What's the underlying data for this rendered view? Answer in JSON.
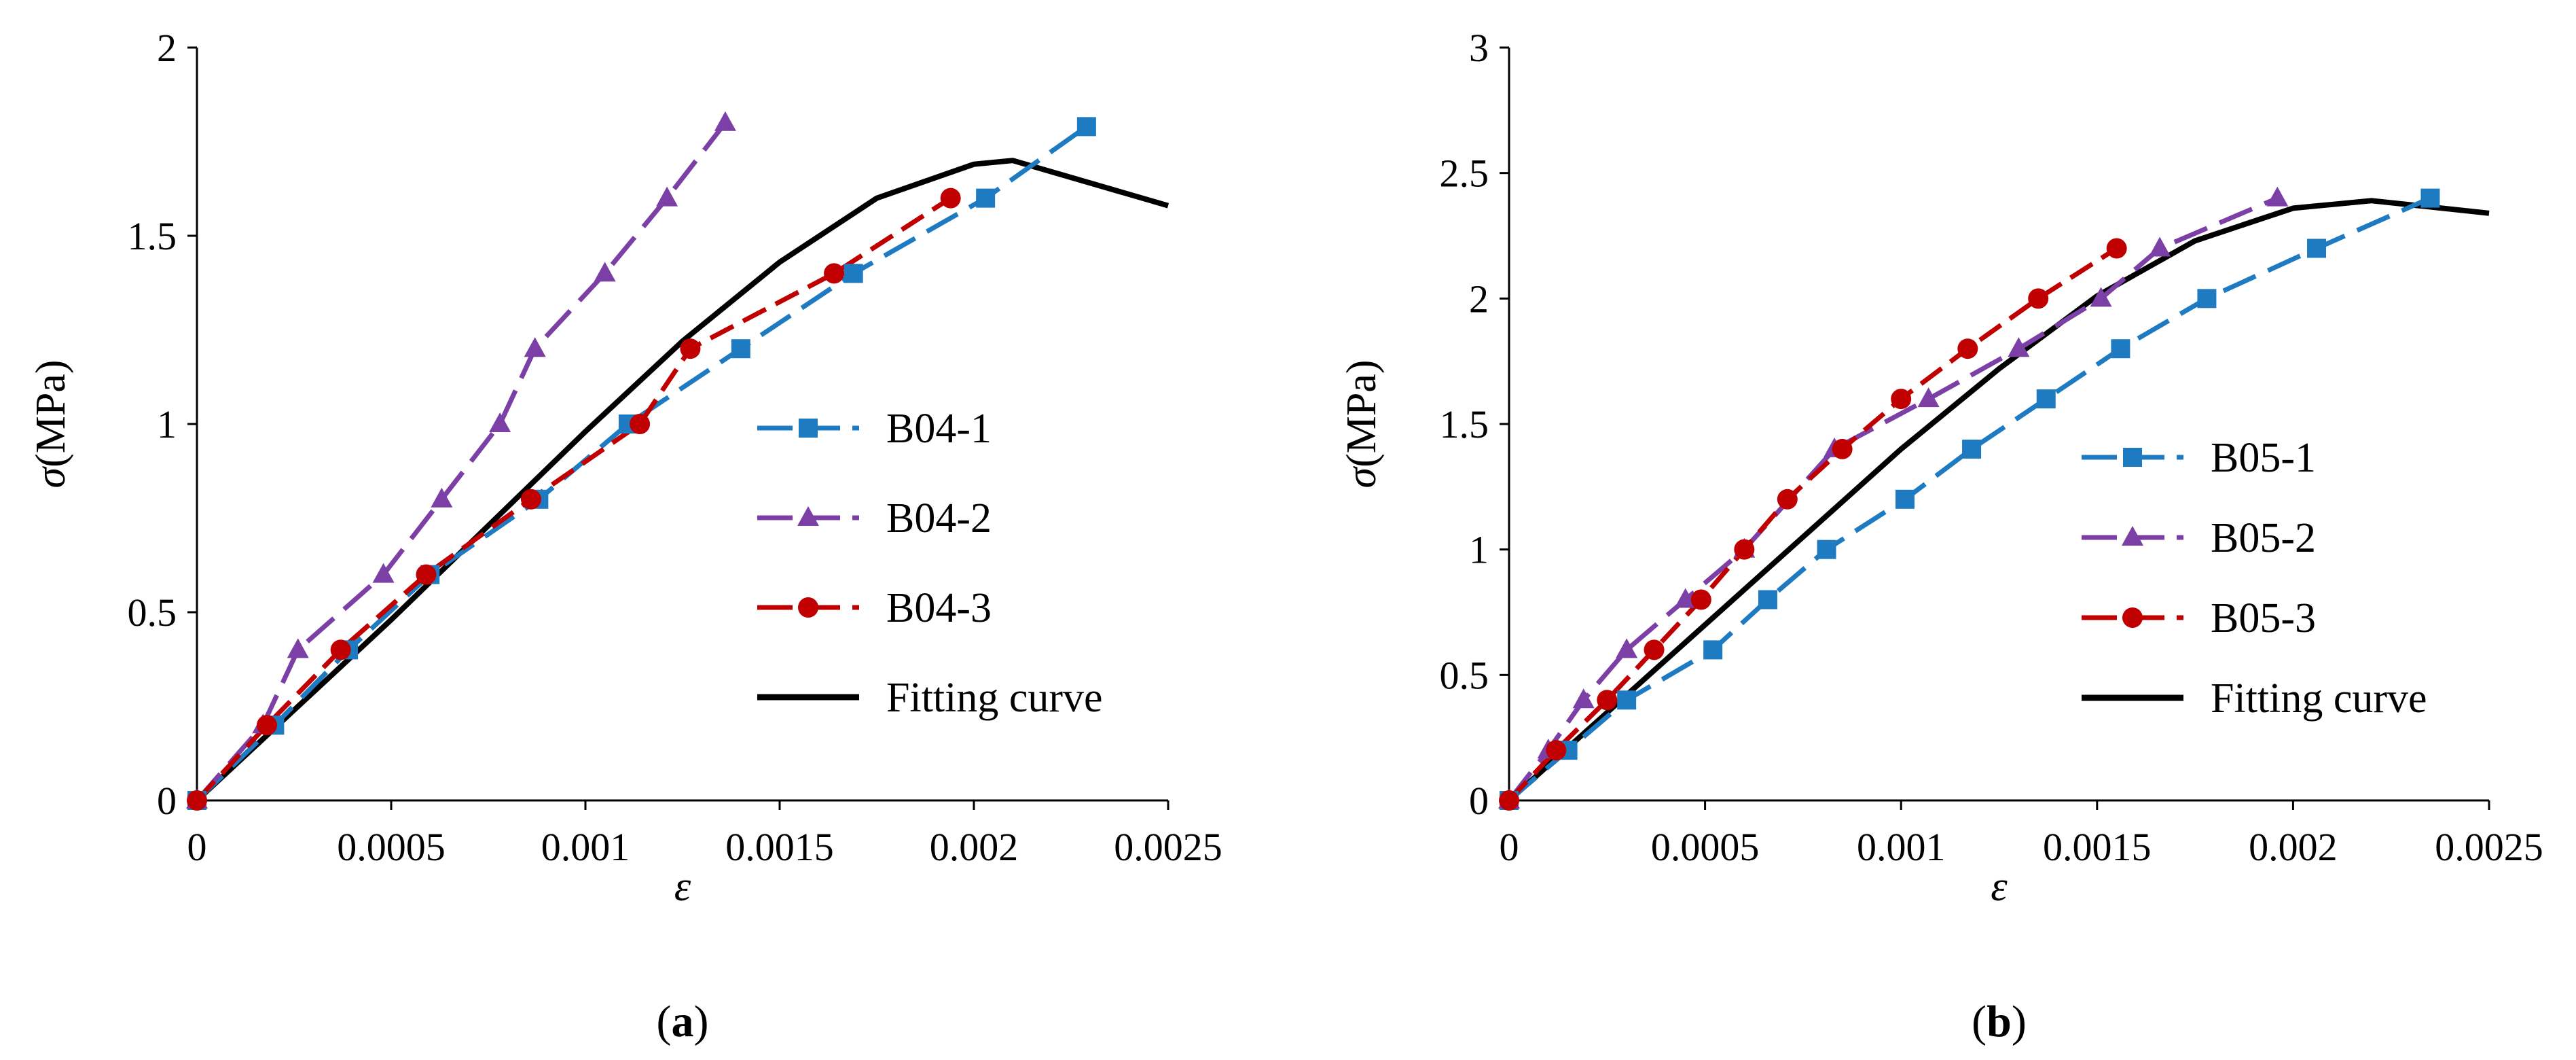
{
  "chart_data": [
    {
      "type": "line",
      "panel_label": "(a)",
      "xlabel": "ε",
      "ylabel": "σ(MPa)",
      "xlim": [
        0,
        0.0025
      ],
      "ylim": [
        0,
        2
      ],
      "x_ticks": [
        "0",
        "0.0005",
        "0.001",
        "0.0015",
        "0.002",
        "0.0025"
      ],
      "x_tick_values": [
        0,
        0.0005,
        0.001,
        0.0015,
        0.002,
        0.0025
      ],
      "y_ticks": [
        "0",
        "0.5",
        "1",
        "1.5",
        "2"
      ],
      "y_tick_values": [
        0,
        0.5,
        1,
        1.5,
        2
      ],
      "legend_position": "center-right",
      "series": [
        {
          "name": "B04-1",
          "color": "#1F7BC1",
          "marker": "square",
          "dash": "long-dash",
          "x": [
            0,
            0.0002,
            0.00039,
            0.0006,
            0.00088,
            0.00111,
            0.0014,
            0.00169,
            0.00203,
            0.00229
          ],
          "y": [
            0,
            0.2,
            0.4,
            0.6,
            0.8,
            1.0,
            1.2,
            1.4,
            1.6,
            1.79
          ]
        },
        {
          "name": "B04-2",
          "color": "#7B3FA6",
          "marker": "triangle",
          "dash": "long-dash",
          "x": [
            0,
            0.00017,
            0.00026,
            0.00048,
            0.00063,
            0.00078,
            0.00087,
            0.00105,
            0.00121,
            0.00136
          ],
          "y": [
            0,
            0.2,
            0.4,
            0.6,
            0.8,
            1.0,
            1.2,
            1.4,
            1.6,
            1.8
          ]
        },
        {
          "name": "B04-3",
          "color": "#C00000",
          "marker": "circle",
          "dash": "dash",
          "x": [
            0,
            0.00018,
            0.00037,
            0.00059,
            0.00086,
            0.00114,
            0.00127,
            0.00164,
            0.00194
          ],
          "y": [
            0,
            0.2,
            0.4,
            0.6,
            0.8,
            1.0,
            1.2,
            1.4,
            1.6
          ]
        },
        {
          "name": "Fitting curve",
          "color": "#000000",
          "marker": "none",
          "dash": "solid",
          "x": [
            0,
            0.00025,
            0.0005,
            0.00075,
            0.001,
            0.00125,
            0.0015,
            0.00175,
            0.002,
            0.0021,
            0.0025
          ],
          "y": [
            0,
            0.24,
            0.48,
            0.73,
            0.98,
            1.22,
            1.43,
            1.6,
            1.69,
            1.7,
            1.58
          ]
        }
      ]
    },
    {
      "type": "line",
      "panel_label": "(b)",
      "xlabel": "ε",
      "ylabel": "σ(MPa)",
      "xlim": [
        0,
        0.0025
      ],
      "ylim": [
        0,
        3
      ],
      "x_ticks": [
        "0",
        "0.0005",
        "0.001",
        "0.0015",
        "0.002",
        "0.0025"
      ],
      "x_tick_values": [
        0,
        0.0005,
        0.001,
        0.0015,
        0.002,
        0.0025
      ],
      "y_ticks": [
        "0",
        "0.5",
        "1",
        "1.5",
        "2",
        "2.5",
        "3"
      ],
      "y_tick_values": [
        0,
        0.5,
        1,
        1.5,
        2,
        2.5,
        3
      ],
      "legend_position": "lower-right",
      "series": [
        {
          "name": "B05-1",
          "color": "#1F7BC1",
          "marker": "square",
          "dash": "long-dash",
          "x": [
            0,
            0.00015,
            0.0003,
            0.00052,
            0.00066,
            0.00081,
            0.00101,
            0.00118,
            0.00137,
            0.00156,
            0.00178,
            0.00206,
            0.00235
          ],
          "y": [
            0,
            0.2,
            0.4,
            0.6,
            0.8,
            1.0,
            1.2,
            1.4,
            1.6,
            1.8,
            2.0,
            2.2,
            2.4
          ]
        },
        {
          "name": "B05-2",
          "color": "#7B3FA6",
          "marker": "triangle",
          "dash": "long-dash",
          "x": [
            0,
            0.0001,
            0.00019,
            0.0003,
            0.00045,
            0.0006,
            0.00083,
            0.00107,
            0.0013,
            0.00151,
            0.00166,
            0.00196
          ],
          "y": [
            0,
            0.2,
            0.4,
            0.6,
            0.8,
            1.0,
            1.4,
            1.6,
            1.8,
            2.0,
            2.2,
            2.4
          ]
        },
        {
          "name": "B05-3",
          "color": "#C00000",
          "marker": "circle",
          "dash": "dash",
          "x": [
            0,
            0.00012,
            0.00025,
            0.00037,
            0.00049,
            0.0006,
            0.00071,
            0.00085,
            0.001,
            0.00117,
            0.00135,
            0.00155
          ],
          "y": [
            0,
            0.2,
            0.4,
            0.6,
            0.8,
            1.0,
            1.2,
            1.4,
            1.6,
            1.8,
            2.0,
            2.2
          ]
        },
        {
          "name": "Fitting curve",
          "color": "#000000",
          "marker": "none",
          "dash": "solid",
          "x": [
            0,
            0.00025,
            0.0005,
            0.00075,
            0.001,
            0.00125,
            0.0015,
            0.00175,
            0.002,
            0.0022,
            0.0025
          ],
          "y": [
            0,
            0.35,
            0.7,
            1.05,
            1.4,
            1.72,
            2.01,
            2.23,
            2.36,
            2.39,
            2.34
          ]
        }
      ]
    }
  ]
}
